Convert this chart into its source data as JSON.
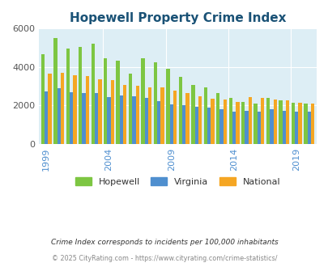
{
  "title": "Hopewell Property Crime Index",
  "title_color": "#1a5276",
  "years": [
    1999,
    2000,
    2001,
    2002,
    2003,
    2004,
    2005,
    2006,
    2007,
    2008,
    2009,
    2010,
    2011,
    2012,
    2013,
    2014,
    2015,
    2016,
    2017,
    2018,
    2019,
    2020
  ],
  "hopewell": [
    4650,
    5500,
    4950,
    5050,
    5200,
    4450,
    4350,
    3650,
    4450,
    4250,
    3900,
    3500,
    3050,
    2950,
    2650,
    2400,
    2200,
    2100,
    2400,
    2250,
    2150,
    2100
  ],
  "virginia": [
    2720,
    2900,
    2680,
    2650,
    2650,
    2450,
    2500,
    2470,
    2380,
    2220,
    2050,
    2000,
    1930,
    1900,
    1820,
    1680,
    1700,
    1680,
    1820,
    1720,
    1680,
    1680
  ],
  "national": [
    3650,
    3680,
    3580,
    3520,
    3380,
    3310,
    3070,
    3040,
    2940,
    2930,
    2760,
    2640,
    2480,
    2350,
    2300,
    2200,
    2450,
    2380,
    2300,
    2250,
    2150,
    2100
  ],
  "hopewell_color": "#7dc642",
  "virginia_color": "#4f8fcf",
  "national_color": "#f5a623",
  "plot_bg": "#ddeef5",
  "ylim": [
    0,
    6000
  ],
  "yticks": [
    0,
    2000,
    4000,
    6000
  ],
  "footer_line1": "Crime Index corresponds to incidents per 100,000 inhabitants",
  "footer_line2": "© 2025 CityRating.com - https://www.cityrating.com/crime-statistics/",
  "xlabel_ticks": [
    1999,
    2004,
    2009,
    2014,
    2019
  ]
}
